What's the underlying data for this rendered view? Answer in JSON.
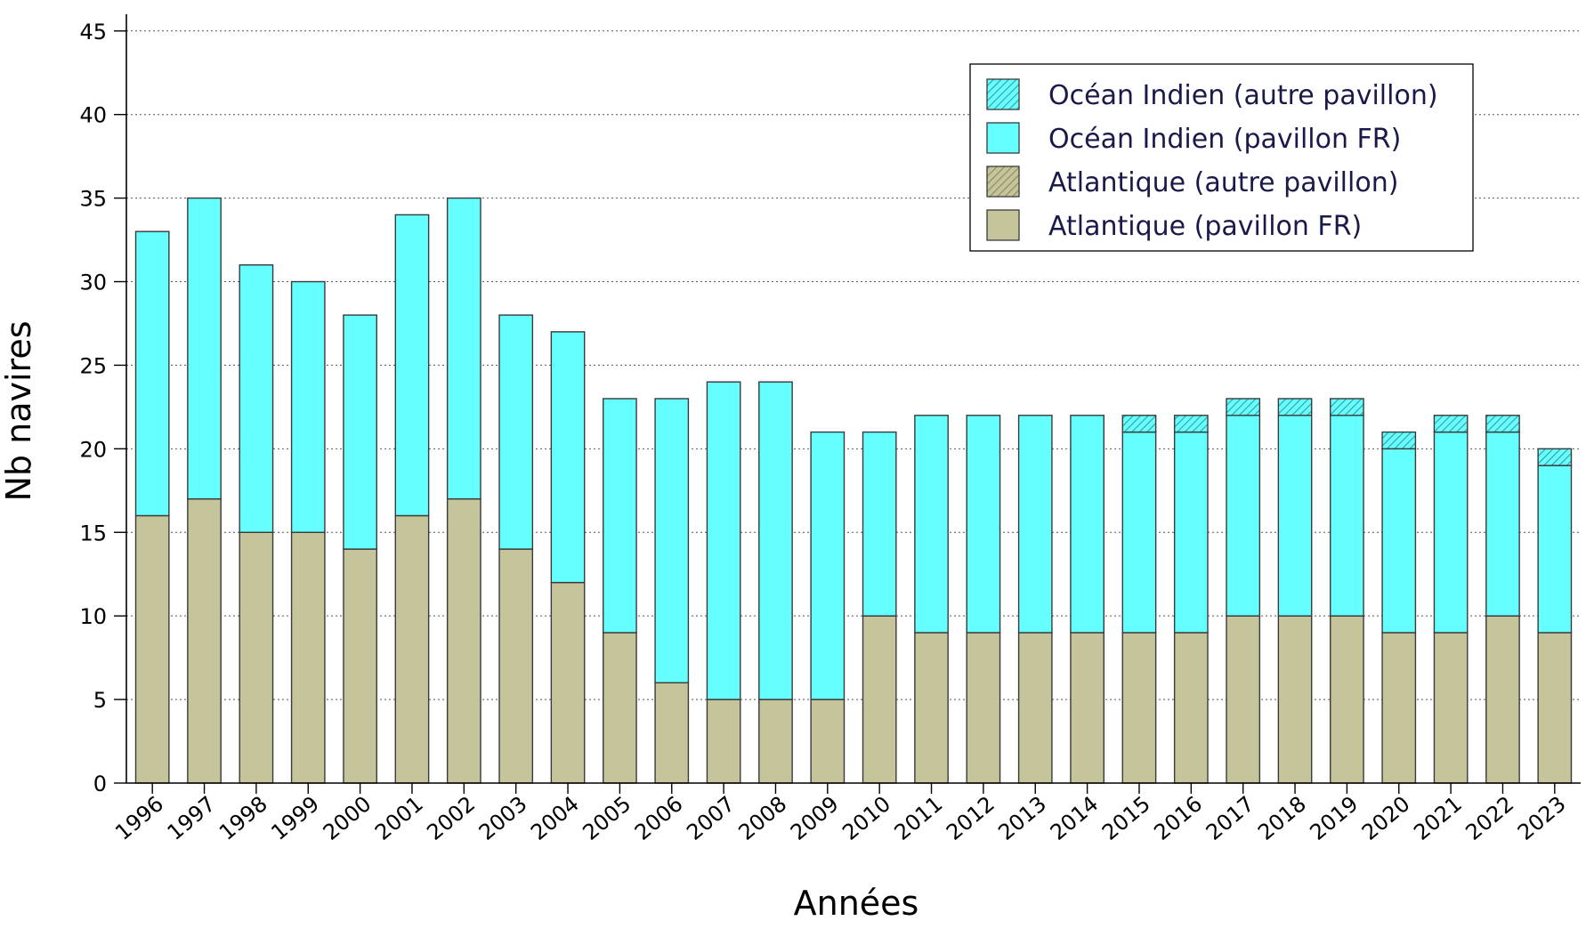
{
  "chart_data": {
    "type": "bar",
    "stacked": true,
    "xlabel": "Années",
    "ylabel": "Nb navires",
    "ylim": [
      0,
      45
    ],
    "yticks": [
      0,
      5,
      10,
      15,
      20,
      25,
      30,
      35,
      40,
      45
    ],
    "grid": "horizontal dotted",
    "legend_position": "top-right",
    "categories": [
      "1996",
      "1997",
      "1998",
      "1999",
      "2000",
      "2001",
      "2002",
      "2003",
      "2004",
      "2005",
      "2006",
      "2007",
      "2008",
      "2009",
      "2010",
      "2011",
      "2012",
      "2013",
      "2014",
      "2015",
      "2016",
      "2017",
      "2018",
      "2019",
      "2020",
      "2021",
      "2022",
      "2023"
    ],
    "series": [
      {
        "name": "Atlantique (pavillon FR)",
        "color": "#c5c49a",
        "pattern": "solid",
        "values": [
          16,
          17,
          15,
          15,
          14,
          16,
          17,
          14,
          12,
          9,
          6,
          5,
          5,
          5,
          10,
          9,
          9,
          9,
          9,
          9,
          9,
          10,
          10,
          10,
          9,
          9,
          10,
          9
        ]
      },
      {
        "name": "Atlantique (autre pavillon)",
        "color": "#c5c49a",
        "pattern": "hatched",
        "values": [
          0,
          0,
          0,
          0,
          0,
          0,
          0,
          0,
          0,
          0,
          0,
          0,
          0,
          0,
          0,
          0,
          0,
          0,
          0,
          0,
          0,
          0,
          0,
          0,
          0,
          0,
          0,
          0
        ]
      },
      {
        "name": "Océan Indien (pavillon FR)",
        "color": "#66ffff",
        "pattern": "solid",
        "values": [
          17,
          18,
          16,
          15,
          14,
          18,
          18,
          14,
          15,
          14,
          17,
          19,
          19,
          16,
          11,
          13,
          13,
          13,
          13,
          12,
          12,
          12,
          12,
          12,
          11,
          12,
          11,
          10
        ]
      },
      {
        "name": "Océan Indien (autre pavillon)",
        "color": "#66ffff",
        "pattern": "hatched",
        "values": [
          0,
          0,
          0,
          0,
          0,
          0,
          0,
          0,
          0,
          0,
          0,
          0,
          0,
          0,
          0,
          0,
          0,
          0,
          0,
          1,
          1,
          1,
          1,
          1,
          1,
          1,
          1,
          1
        ]
      }
    ],
    "legend_order": [
      "Océan Indien (autre pavillon)",
      "Océan Indien (pavillon FR)",
      "Atlantique (autre pavillon)",
      "Atlantique (pavillon FR)"
    ]
  }
}
